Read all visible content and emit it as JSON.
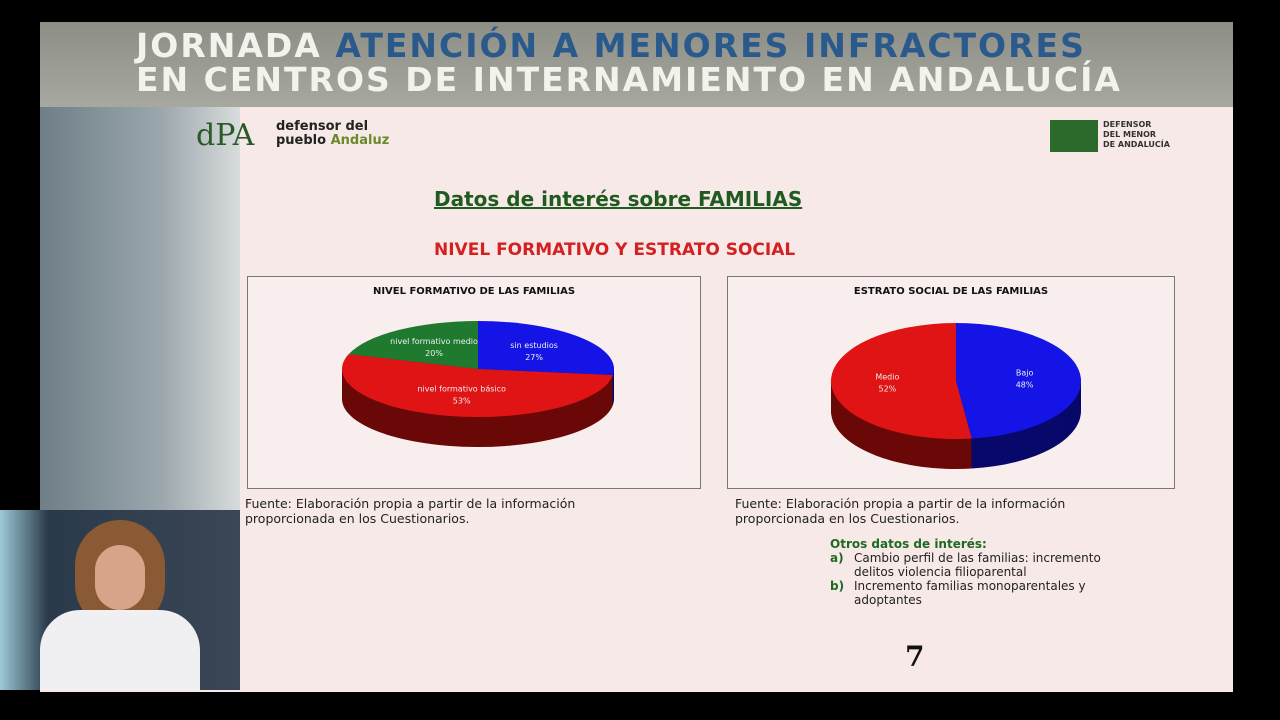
{
  "header": {
    "line1_a": "JORNADA",
    "line1_b": "ATENCIÓN A MENORES INFRACTORES",
    "line2": "EN CENTROS DE INTERNAMIENTO EN ANDALUCÍA"
  },
  "logos": {
    "dpa": "dPA",
    "dpa_line1": "defensor del",
    "dpa_line2a": "pueblo",
    "dpa_line2b": "Andaluz",
    "menor": [
      "DEFENSOR",
      "DEL MENOR",
      "DE ANDALUCÍA"
    ]
  },
  "slide": {
    "title": "Datos de interés sobre FAMILIAS",
    "subtitle": "NIVEL FORMATIVO Y ESTRATO SOCIAL",
    "sources": [
      "Fuente: Elaboración propia a partir de la información proporcionada en los Cuestionarios.",
      "Fuente: Elaboración propia a partir de la información proporcionada en los Cuestionarios."
    ],
    "other_title": "Otros datos de interés:",
    "other_items": [
      {
        "marker": "a)",
        "text": "Cambio perfil de las familias: incremento delitos violencia filioparental"
      },
      {
        "marker": "b)",
        "text": "Incremento familias monoparentales y adoptantes"
      }
    ],
    "page": "7"
  },
  "chart_data": [
    {
      "type": "pie",
      "title": "NIVEL FORMATIVO DE LAS FAMILIAS",
      "categories": [
        "sin estudios",
        "nivel formativo básico",
        "nivel formativo medio"
      ],
      "values": [
        27,
        53,
        20
      ],
      "value_labels": [
        "27%",
        "53%",
        "20%"
      ],
      "colors": [
        "#1414e6",
        "#e01414",
        "#1f7a30"
      ],
      "side_colors": [
        "#08086a",
        "#6a0808",
        "#0d3a15"
      ]
    },
    {
      "type": "pie",
      "title": "ESTRATO SOCIAL DE LAS FAMILIAS",
      "categories": [
        "Bajo",
        "Medio"
      ],
      "values": [
        48,
        52
      ],
      "value_labels": [
        "48%",
        "52%"
      ],
      "colors": [
        "#1414e6",
        "#e01414"
      ],
      "side_colors": [
        "#08086a",
        "#6a0808"
      ]
    }
  ]
}
